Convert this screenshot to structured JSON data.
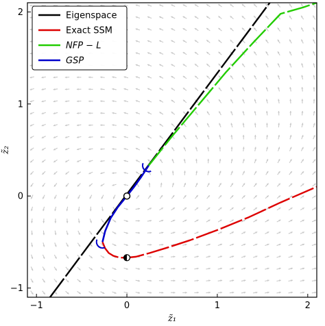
{
  "chart_data": {
    "type": "line",
    "xlabel": "z̃₁",
    "ylabel": "z̃₂",
    "xlim": [
      -1.1,
      2.1
    ],
    "ylim": [
      -1.1,
      2.1
    ],
    "xticks": [
      -1,
      0,
      1,
      2
    ],
    "yticks": [
      -1,
      0,
      1,
      2
    ],
    "xtick_labels": [
      "−1",
      "0",
      "1",
      "2"
    ],
    "ytick_labels": [
      "−1",
      "0",
      "1",
      "2"
    ],
    "grid": false,
    "legend_position": "top-left",
    "vector_field": {
      "shown": true,
      "color": "#c8c8c8"
    },
    "series": [
      {
        "name": "Eigenspace",
        "color": "#000000",
        "style": "dashed",
        "x": [
          -0.85,
          1.58
        ],
        "y": [
          -1.1,
          2.1
        ]
      },
      {
        "name": "Exact SSM",
        "color": "#dd0000",
        "style": "dashed",
        "x": [
          -0.27,
          -0.24,
          -0.2,
          -0.15,
          -0.08,
          0.0,
          0.1,
          0.25,
          0.45,
          0.7,
          1.0,
          1.35,
          1.7,
          2.1
        ],
        "y": [
          -0.5,
          -0.57,
          -0.62,
          -0.65,
          -0.67,
          -0.67,
          -0.66,
          -0.62,
          -0.56,
          -0.48,
          -0.37,
          -0.23,
          -0.07,
          0.1
        ]
      },
      {
        "name": "NFP − L",
        "color": "#22cc00",
        "style": "dashed",
        "x": [
          0.24,
          0.5,
          0.8,
          1.1,
          1.4,
          1.7,
          1.95,
          2.1
        ],
        "y": [
          0.33,
          0.65,
          1.0,
          1.35,
          1.67,
          1.98,
          2.05,
          2.1
        ]
      },
      {
        "name": "GSP",
        "color": "#0000cc",
        "style": "solid",
        "x": [
          -0.27,
          -0.24,
          -0.18,
          -0.1,
          0.0,
          0.08,
          0.16,
          0.24
        ],
        "y": [
          -0.5,
          -0.38,
          -0.24,
          -0.12,
          0.0,
          0.1,
          0.21,
          0.33
        ]
      }
    ],
    "markers": [
      {
        "x": 0.0,
        "y": 0.0,
        "style": "open-circle"
      },
      {
        "x": 0.0,
        "y": -0.67,
        "style": "half-filled-circle"
      }
    ]
  }
}
